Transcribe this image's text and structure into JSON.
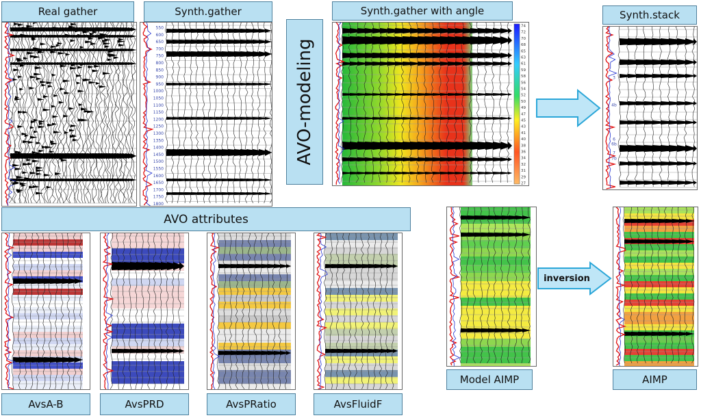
{
  "panels": {
    "real_gather": {
      "title": "Real gather"
    },
    "synth_gather": {
      "title": "Synth.gather",
      "depth_labels": [
        550,
        600,
        650,
        700,
        750,
        800,
        850,
        900,
        950,
        1000,
        1050,
        1100,
        1150,
        1200,
        1250,
        1300,
        1350,
        1400,
        1450,
        1500,
        1550,
        1600,
        1650,
        1700,
        1750,
        1800
      ]
    },
    "avo_modeling": {
      "title": "AVO-modeling"
    },
    "synth_angle": {
      "title": "Synth.gather with angle",
      "angle_labels": [
        74,
        72,
        70,
        68,
        65,
        63,
        61,
        59,
        58,
        56,
        54,
        52,
        50,
        49,
        47,
        45,
        43,
        41,
        40,
        38,
        36,
        34,
        32,
        31,
        29,
        27
      ]
    },
    "synth_stack": {
      "title": "Synth.stack",
      "markers": [
        "3",
        "4b",
        "6",
        "6b",
        "7",
        "7b"
      ]
    },
    "avo_attributes": {
      "title": "AVO attributes",
      "items": [
        "AvsA-B",
        "AvsPRD",
        "AvsPRatio",
        "AvsFluidF"
      ]
    },
    "model_aimp": {
      "title": "Model AIMP"
    },
    "inversion": {
      "label": "inversion"
    },
    "aimp": {
      "title": "AIMP"
    }
  }
}
